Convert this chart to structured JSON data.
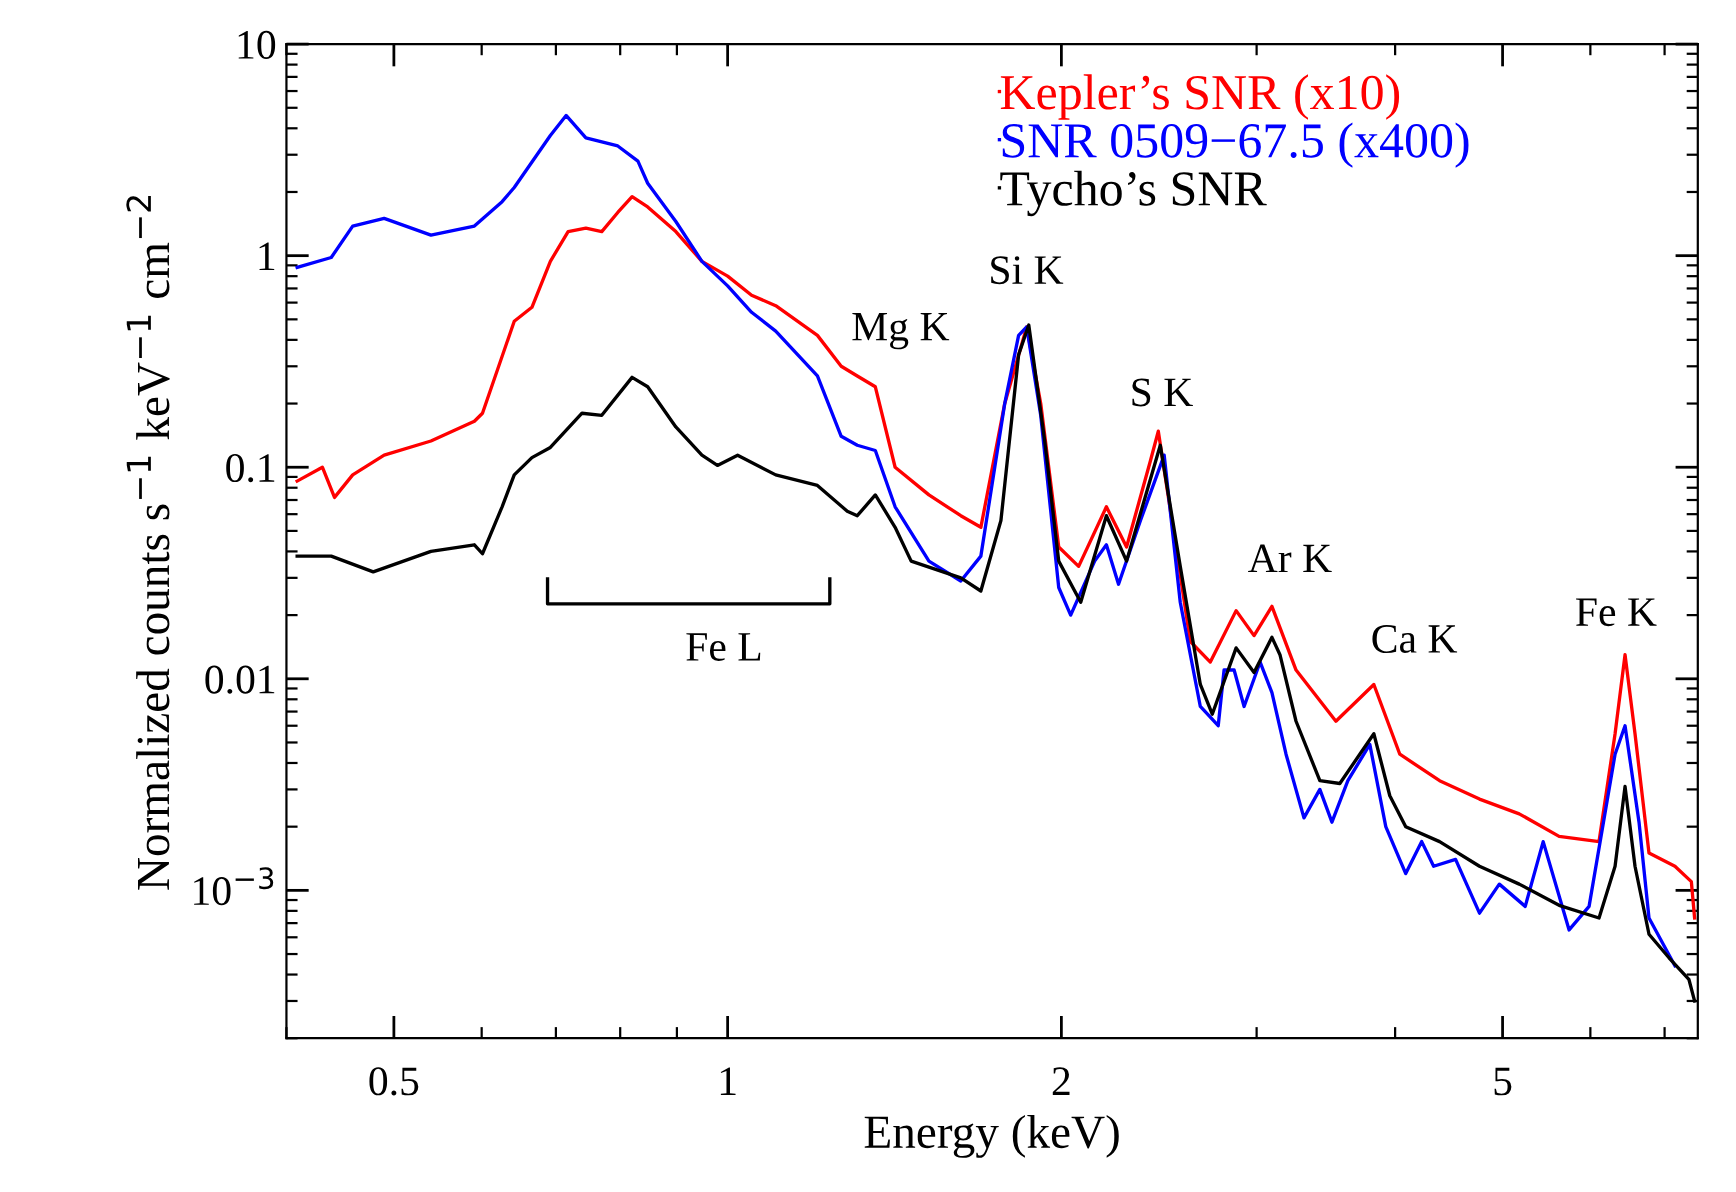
{
  "chart_data": {
    "type": "line",
    "xlabel": "Energy (keV)",
    "ylabel": "Normalized counts s$^{−1}$ keV$^{−1}$ cm$^{−2}$",
    "log": "xy",
    "xlim": [
      0.4,
      7.5
    ],
    "ylim": [
      0.0002,
      10
    ],
    "xticks": [
      0.5,
      1,
      2,
      5
    ],
    "yticks": [
      0.01,
      0.1,
      1,
      10,
      {
        "value": 0.001,
        "label": "10$^{−3}$"
      }
    ],
    "grid": false,
    "legend": "top right",
    "marker": "none",
    "line_style": "solid",
    "series": [
      {
        "name": "Kepler’s SNR (x10)",
        "color": "#ff0000",
        "x": [
          0.409,
          0.431,
          0.442,
          0.459,
          0.49,
          0.54,
          0.591,
          0.601,
          0.642,
          0.666,
          0.692,
          0.718,
          0.745,
          0.77,
          0.796,
          0.82,
          0.847,
          0.898,
          0.948,
          1.0,
          1.051,
          1.105,
          1.205,
          1.266,
          1.309,
          1.359,
          1.416,
          1.519,
          1.623,
          1.692,
          1.778,
          1.861,
          1.916,
          1.989,
          2.073,
          2.196,
          2.29,
          2.406,
          2.446,
          2.56,
          2.614,
          2.725,
          2.875,
          2.984,
          3.097,
          3.256,
          3.537,
          3.827,
          4.039,
          4.387,
          4.766,
          5.176,
          5.623,
          6.109,
          6.316,
          6.448,
          6.583,
          6.777,
          7.152,
          7.4,
          7.45
        ],
        "values": [
          0.086,
          0.1,
          0.072,
          0.092,
          0.114,
          0.133,
          0.165,
          0.18,
          0.49,
          0.57,
          0.94,
          1.3,
          1.35,
          1.3,
          1.6,
          1.9,
          1.7,
          1.3,
          0.94,
          0.8,
          0.65,
          0.58,
          0.42,
          0.3,
          0.27,
          0.24,
          0.1,
          0.074,
          0.059,
          0.052,
          0.2,
          0.46,
          0.2,
          0.042,
          0.034,
          0.065,
          0.042,
          0.107,
          0.148,
          0.031,
          0.015,
          0.012,
          0.021,
          0.016,
          0.022,
          0.011,
          0.0063,
          0.0094,
          0.0044,
          0.0033,
          0.0027,
          0.0023,
          0.0018,
          0.0017,
          0.0055,
          0.013,
          0.0055,
          0.0015,
          0.0013,
          0.0011,
          0.00074
        ]
      },
      {
        "name": "SNR 0509−67.5 (x400)",
        "color": "#0000ff",
        "x": [
          0.409,
          0.439,
          0.459,
          0.49,
          0.54,
          0.591,
          0.626,
          0.642,
          0.692,
          0.715,
          0.745,
          0.796,
          0.83,
          0.847,
          0.898,
          0.948,
          1.0,
          1.051,
          1.105,
          1.205,
          1.266,
          1.309,
          1.359,
          1.416,
          1.519,
          1.623,
          1.692,
          1.778,
          1.83,
          1.861,
          1.916,
          1.989,
          2.039,
          2.143,
          2.196,
          2.252,
          2.357,
          2.476,
          2.56,
          2.669,
          2.77,
          2.804,
          2.863,
          2.923,
          3.022,
          3.097,
          3.189,
          3.31,
          3.421,
          3.508,
          3.626,
          3.795,
          3.923,
          4.089,
          4.227,
          4.333,
          4.535,
          4.766,
          4.966,
          5.241,
          5.44,
          5.741,
          5.984,
          6.316,
          6.448,
          6.638,
          6.777,
          7.152
        ],
        "values": [
          0.88,
          0.98,
          1.38,
          1.5,
          1.25,
          1.38,
          1.8,
          2.1,
          3.7,
          4.6,
          3.6,
          3.3,
          2.8,
          2.2,
          1.45,
          0.94,
          0.72,
          0.54,
          0.44,
          0.27,
          0.14,
          0.127,
          0.12,
          0.065,
          0.036,
          0.029,
          0.038,
          0.2,
          0.42,
          0.46,
          0.176,
          0.027,
          0.02,
          0.036,
          0.043,
          0.028,
          0.056,
          0.114,
          0.023,
          0.0074,
          0.006,
          0.011,
          0.011,
          0.0074,
          0.012,
          0.0086,
          0.0044,
          0.0022,
          0.003,
          0.0021,
          0.0033,
          0.0049,
          0.002,
          0.0012,
          0.0017,
          0.0013,
          0.0014,
          0.00078,
          0.00107,
          0.00084,
          0.0017,
          0.00065,
          0.00084,
          0.0044,
          0.006,
          0.0021,
          0.00074,
          0.00044
        ]
      },
      {
        "name": "Tycho’s SNR",
        "color": "#000000",
        "x": [
          0.409,
          0.439,
          0.479,
          0.54,
          0.591,
          0.601,
          0.626,
          0.642,
          0.666,
          0.692,
          0.739,
          0.77,
          0.82,
          0.847,
          0.898,
          0.948,
          0.979,
          1.021,
          1.105,
          1.205,
          1.282,
          1.309,
          1.359,
          1.416,
          1.464,
          1.623,
          1.692,
          1.764,
          1.83,
          1.869,
          1.932,
          1.989,
          2.082,
          2.196,
          2.29,
          2.456,
          2.56,
          2.669,
          2.736,
          2.875,
          2.984,
          3.097,
          3.149,
          3.256,
          3.421,
          3.566,
          3.717,
          3.827,
          3.956,
          4.089,
          4.387,
          4.766,
          5.176,
          5.623,
          6.109,
          6.316,
          6.448,
          6.583,
          6.777,
          7.064,
          7.362,
          7.45
        ],
        "values": [
          0.038,
          0.038,
          0.032,
          0.04,
          0.043,
          0.039,
          0.065,
          0.092,
          0.111,
          0.124,
          0.18,
          0.176,
          0.266,
          0.24,
          0.155,
          0.114,
          0.102,
          0.114,
          0.092,
          0.082,
          0.062,
          0.059,
          0.074,
          0.052,
          0.036,
          0.03,
          0.026,
          0.056,
          0.34,
          0.47,
          0.133,
          0.036,
          0.023,
          0.059,
          0.036,
          0.127,
          0.034,
          0.0094,
          0.0068,
          0.014,
          0.0107,
          0.0157,
          0.013,
          0.0063,
          0.0033,
          0.0032,
          0.0044,
          0.0055,
          0.0028,
          0.002,
          0.0017,
          0.0013,
          0.00107,
          0.00085,
          0.00074,
          0.0013,
          0.0031,
          0.0013,
          0.00062,
          0.00048,
          0.00038,
          0.0003
        ]
      }
    ],
    "annotations": [
      "Mg K",
      "Si K",
      "S K",
      "Ar K",
      "Ca K",
      "Fe K",
      "Fe L"
    ]
  }
}
